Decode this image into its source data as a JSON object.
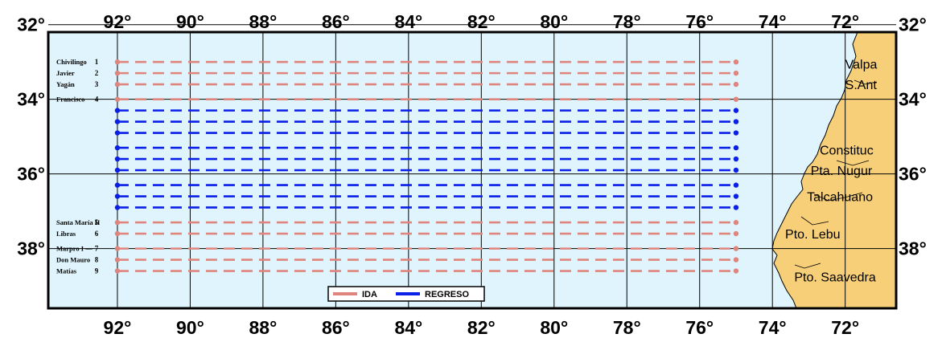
{
  "map": {
    "lon_range": [
      93.9,
      70.6
    ],
    "lat_range": [
      32.2,
      39.6
    ],
    "colors": {
      "ocean": "#dff4fc",
      "land": "#f7cf78",
      "grid": "#000000",
      "ida": "#e0857d",
      "regreso": "#0a1fe8"
    }
  },
  "axes": {
    "top_lon_labels": [
      "92°",
      "90°",
      "88°",
      "86°",
      "84°",
      "82°",
      "80°",
      "78°",
      "76°",
      "74°",
      "72°"
    ],
    "bottom_lon_labels": [
      "92°",
      "90°",
      "88°",
      "86°",
      "84°",
      "82°",
      "80°",
      "78°",
      "76°",
      "74°",
      "72°"
    ],
    "left_lat_labels": [
      "32°",
      "34°",
      "36°",
      "38°"
    ],
    "right_lat_labels": [
      "32°",
      "34°",
      "36°",
      "38°"
    ]
  },
  "tracks": {
    "ida": [
      {
        "num": "1",
        "name": "Chivilingo",
        "lat": 33.0
      },
      {
        "num": "2",
        "name": "Javier",
        "lat": 33.3
      },
      {
        "num": "3",
        "name": "Yagán",
        "lat": 33.6
      },
      {
        "num": "4",
        "name": "Francisco",
        "lat": 34.0
      },
      {
        "num": "5",
        "name": "Santa María II",
        "lat": 37.3
      },
      {
        "num": "6",
        "name": "Libras",
        "lat": 37.6
      },
      {
        "num": "7",
        "name": "Marpro I —",
        "lat": 38.0
      },
      {
        "num": "8",
        "name": "Don Mauro",
        "lat": 38.3
      },
      {
        "num": "9",
        "name": "Matías",
        "lat": 38.6
      }
    ],
    "regreso_lats": [
      34.3,
      34.6,
      34.9,
      35.3,
      35.6,
      35.9,
      36.3,
      36.6,
      36.9
    ],
    "lon_start": 92,
    "lon_end": 75
  },
  "places": [
    {
      "name": "Valpa",
      "lon": 72.0,
      "lat": 33.05
    },
    {
      "name": "S.Ant",
      "lon": 72.0,
      "lat": 33.6
    },
    {
      "name": "Constituc",
      "lon": 72.7,
      "lat": 35.35
    },
    {
      "name": "Pta. Nugur",
      "lon": 72.95,
      "lat": 35.9
    },
    {
      "name": "Talcahuano",
      "lon": 73.05,
      "lat": 36.6
    },
    {
      "name": "Pto. Lebu",
      "lon": 73.65,
      "lat": 37.6
    },
    {
      "name": "Pto. Saavedra",
      "lon": 73.4,
      "lat": 38.75
    }
  ],
  "legend": {
    "ida_label": "IDA",
    "regreso_label": "REGRESO"
  }
}
